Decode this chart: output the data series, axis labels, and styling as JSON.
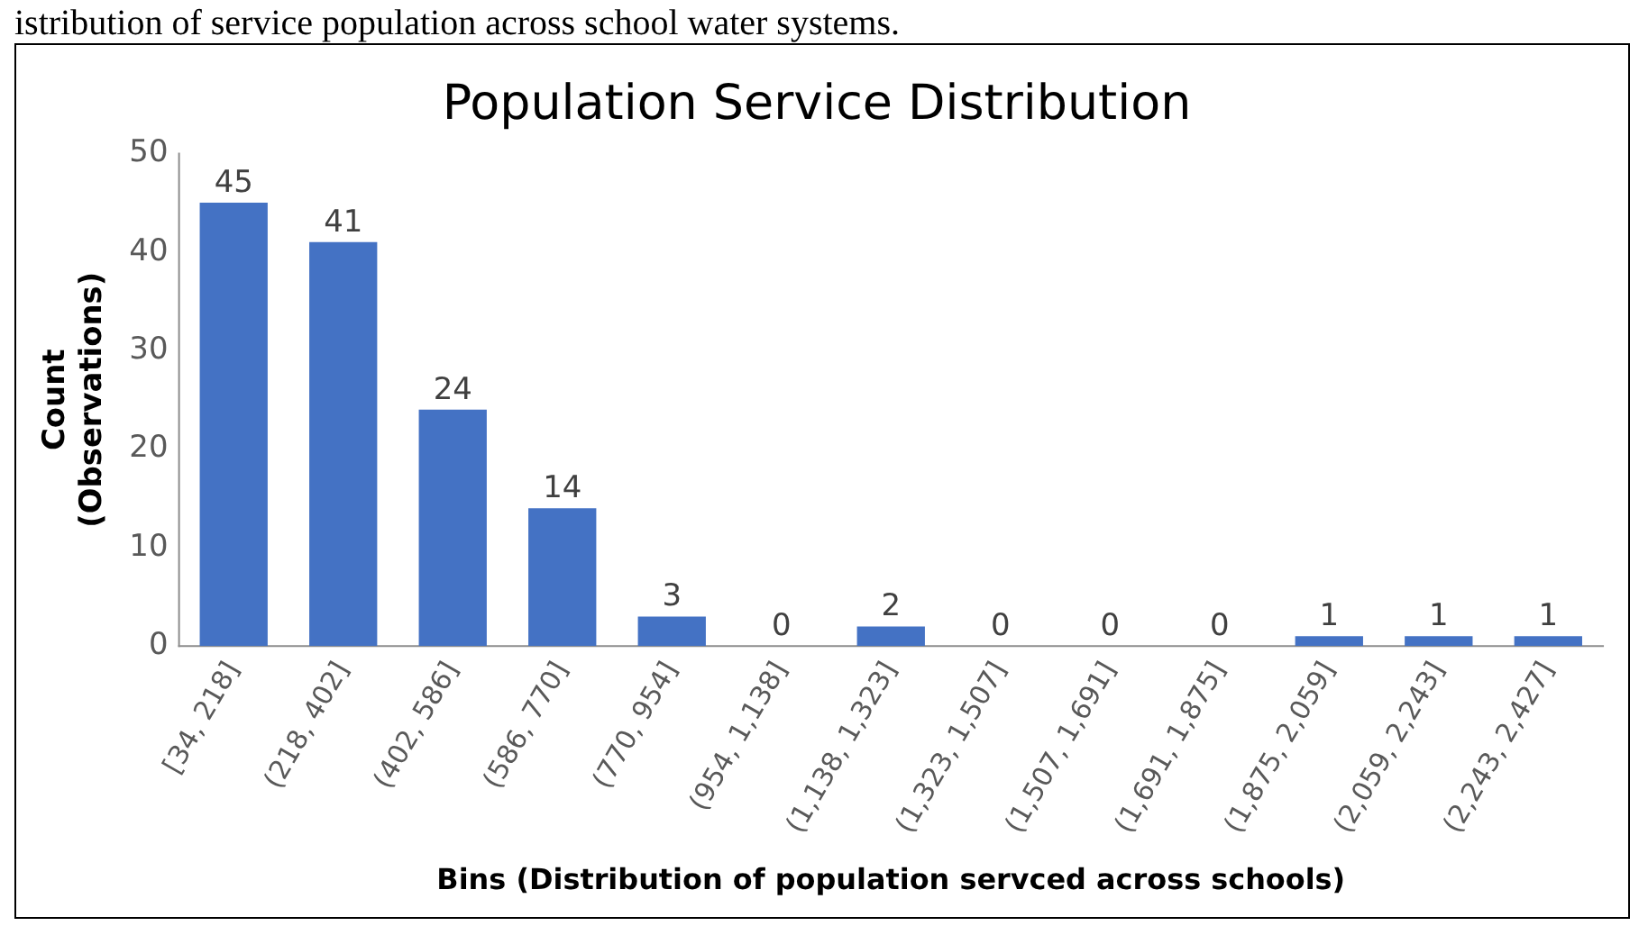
{
  "chart_data": {
    "type": "bar",
    "title": "Population Service Distribution",
    "xlabel": "Bins (Distribution of population servced across schools)",
    "ylabel": "Count\n(Observations)",
    "annotations": [
      "istribution of service population across school water systems."
    ],
    "categories": [
      "[34, 218]",
      "(218, 402]",
      "(402, 586]",
      "(586, 770]",
      "(770, 954]",
      "(954, 1,138]",
      "(1,138, 1,323]",
      "(1,323, 1,507]",
      "(1,507, 1,691]",
      "(1,691, 1,875]",
      "(1,875, 2,059]",
      "(2,059, 2,243]",
      "(2,243, 2,427]"
    ],
    "values": [
      45,
      41,
      24,
      14,
      3,
      0,
      2,
      0,
      0,
      0,
      1,
      1,
      1
    ],
    "color": "#4472c4",
    "ylim": [
      0,
      50
    ],
    "yticks": [
      0,
      10,
      20,
      30,
      40,
      50
    ],
    "grid": false,
    "data_labels": true,
    "legend": false
  }
}
